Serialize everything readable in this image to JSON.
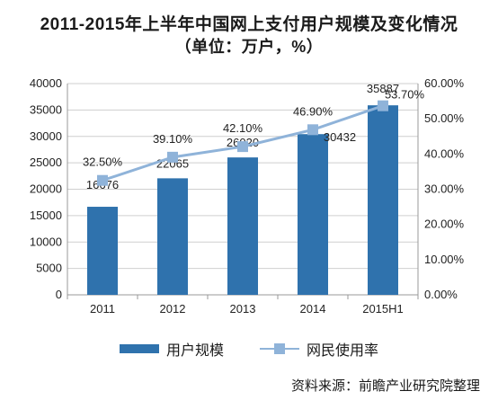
{
  "title_line1": "2011-2015年上半年中国网上支付用户规模及变化情况",
  "title_line2": "（单位：万户，%）",
  "source": "资料来源：前瞻产业研究院整理",
  "chart_data": {
    "type": "bar+line",
    "categories": [
      "2011",
      "2012",
      "2013",
      "2014",
      "2015H1"
    ],
    "series": [
      {
        "name": "用户规模",
        "type": "bar",
        "axis": "left",
        "values": [
          16676,
          22065,
          26020,
          30432,
          35887
        ],
        "labels": [
          "16676",
          "22065",
          "26020",
          "30432",
          "35887"
        ],
        "color": "#2f72ad"
      },
      {
        "name": "网民使用率",
        "type": "line",
        "axis": "right",
        "values": [
          32.5,
          39.1,
          42.1,
          46.9,
          53.7
        ],
        "labels": [
          "32.50%",
          "39.10%",
          "42.10%",
          "46.90%",
          "53.70%"
        ],
        "color": "#8fb3d9"
      }
    ],
    "y_left": {
      "min": 0,
      "max": 40000,
      "step": 5000,
      "ticks": [
        "0",
        "5000",
        "10000",
        "15000",
        "20000",
        "25000",
        "30000",
        "35000",
        "40000"
      ]
    },
    "y_right": {
      "min": 0,
      "max": 60,
      "step": 10,
      "ticks": [
        "0.00%",
        "10.00%",
        "20.00%",
        "30.00%",
        "40.00%",
        "50.00%",
        "60.00%"
      ]
    },
    "grid": true,
    "legend_position": "bottom"
  }
}
